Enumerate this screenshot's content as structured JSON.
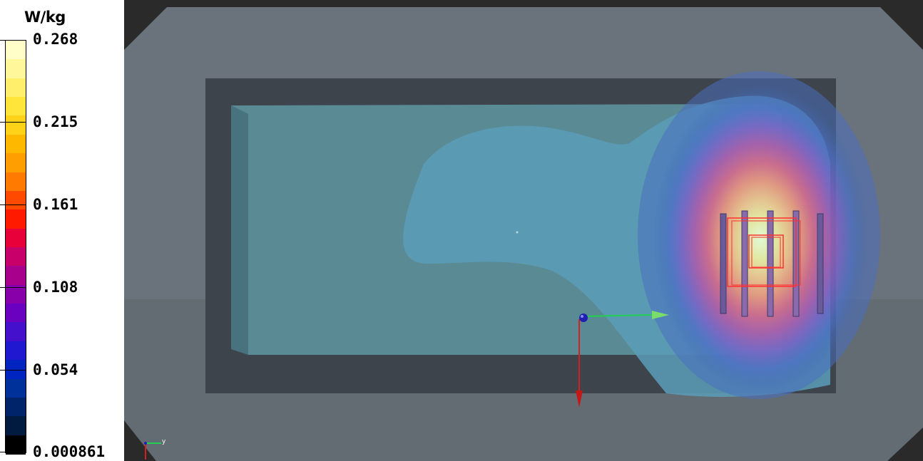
{
  "colorbar": {
    "unit": "W/kg",
    "ticks": [
      "0.268",
      "0.215",
      "0.161",
      "0.108",
      "0.054",
      "0.000861"
    ],
    "bands": [
      "#fffdc8",
      "#fff79a",
      "#ffef6a",
      "#ffe43a",
      "#ffd21a",
      "#ffb800",
      "#ff9e00",
      "#ff7a00",
      "#ff4a00",
      "#ff1a00",
      "#e8003a",
      "#c8006a",
      "#a8008c",
      "#8800aa",
      "#6a00c0",
      "#4410cc",
      "#2018d0",
      "#0024c0",
      "#00309a",
      "#00246a",
      "#001a40",
      "#000000"
    ],
    "tick_colors": [
      "#fffdc8",
      "#ffd21a",
      "#ff1a00",
      "#8800aa",
      "#0024c0",
      "#000000"
    ]
  },
  "scene": {
    "axes_labels": {
      "y": "y"
    },
    "colors": {
      "outer_shell": "#6e7680",
      "cavity_frame": "#3c434a",
      "phantom": "#5a9aa8",
      "background": "#2a2a2a",
      "x_axis": "#22c84a",
      "z_axis": "#d42020",
      "origin": "#2020a0"
    }
  }
}
